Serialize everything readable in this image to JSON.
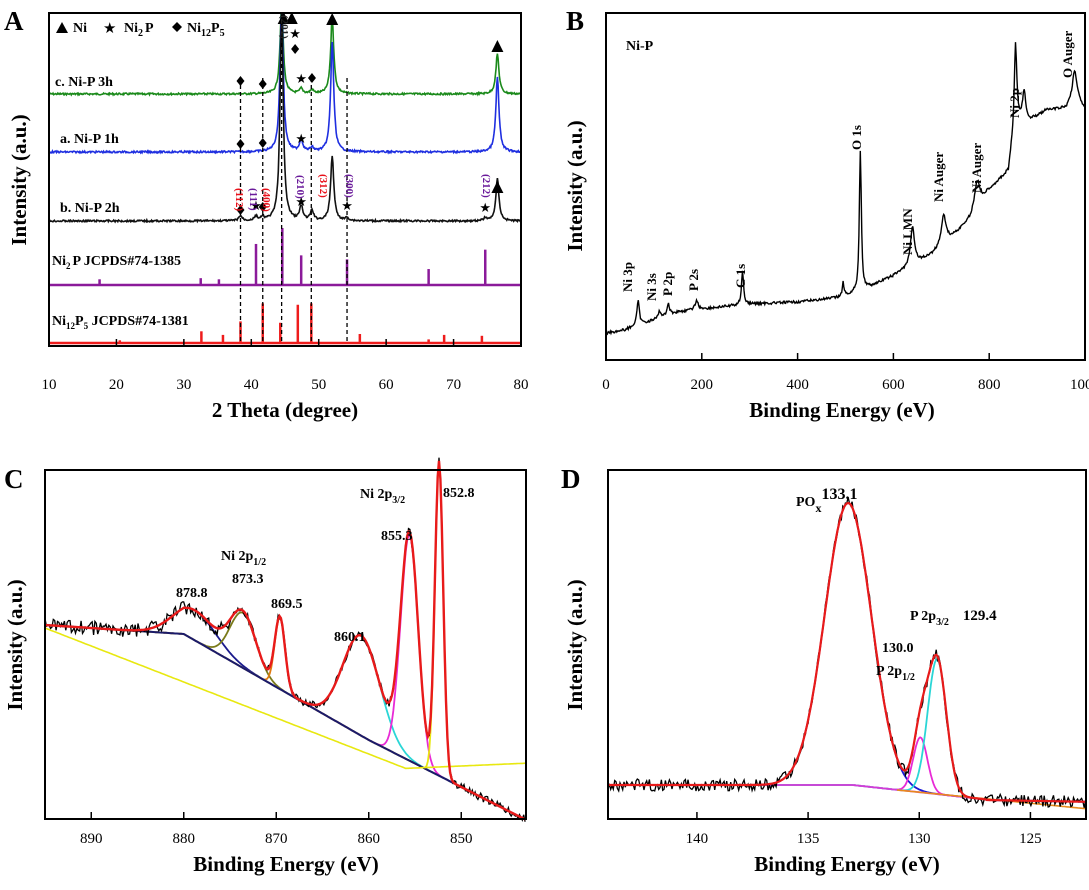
{
  "figure": {
    "panels": [
      {
        "letter": "A",
        "type": "line",
        "xlabel": "2 Theta (degree)",
        "ylabel": "Intensity (a.u.)",
        "xlim": [
          10,
          80
        ],
        "xticks": [
          "10",
          "20",
          "30",
          "40",
          "50",
          "60",
          "70",
          "80"
        ],
        "legend": {
          "ni_label": "Ni",
          "ni2p_label": "Ni",
          "ni2p_sub": "2",
          "ni2p_tail": "P",
          "ni12p5_label": "Ni",
          "ni12p5_sub1": "12",
          "ni12p5_mid": "P",
          "ni12p5_sub2": "5"
        },
        "series": [
          {
            "name": "c. Ni-P 3h",
            "color": "#1b8a1b"
          },
          {
            "name": "a. Ni-P 1h",
            "color": "#1f2fe0"
          },
          {
            "name": "b. Ni-P 2h",
            "color": "#111111"
          }
        ],
        "references": [
          {
            "label": "Ni",
            "sub": "2",
            "tail": "P JCPDS#74-1385",
            "color": "#8b1a9a",
            "peaks": [
              [
                17.5,
                0.1
              ],
              [
                32.5,
                0.12
              ],
              [
                35.2,
                0.1
              ],
              [
                40.7,
                0.72
              ],
              [
                44.6,
                1.0
              ],
              [
                47.4,
                0.52
              ],
              [
                54.2,
                0.45
              ],
              [
                66.3,
                0.28
              ],
              [
                74.7,
                0.62
              ]
            ]
          },
          {
            "label": "Ni",
            "sub": "12",
            "mid": "P",
            "sub2": "5",
            "tail": " JCPDS#74-1381",
            "color": "#ee1c1c",
            "peaks": [
              [
                20.5,
                0.06
              ],
              [
                32.6,
                0.26
              ],
              [
                35.8,
                0.18
              ],
              [
                38.4,
                0.48
              ],
              [
                41.7,
                0.88
              ],
              [
                44.3,
                0.45
              ],
              [
                46.9,
                0.85
              ],
              [
                48.9,
                0.88
              ],
              [
                56.1,
                0.2
              ],
              [
                66.3,
                0.08
              ],
              [
                68.6,
                0.18
              ],
              [
                74.2,
                0.16
              ]
            ]
          }
        ],
        "hkl_labels": [
          {
            "text": "(112)",
            "color": "#e8101a"
          },
          {
            "text": "(111)",
            "color": "#6a1a9a"
          },
          {
            "text": "(400)",
            "color": "#e8101a"
          },
          {
            "text": "(201)",
            "color": "#222222"
          },
          {
            "text": "(210)",
            "color": "#6a1a9a"
          },
          {
            "text": "(312)",
            "color": "#e8101a"
          },
          {
            "text": "(300)",
            "color": "#6a1a9a"
          },
          {
            "text": "(212)",
            "color": "#6a1a9a"
          }
        ]
      },
      {
        "letter": "B",
        "type": "line",
        "title": "Ni-P",
        "xlabel": "Binding  Energy (eV)",
        "ylabel": "Intensity (a.u.)",
        "xlim": [
          0,
          1000
        ],
        "xticks": [
          "0",
          "200",
          "400",
          "600",
          "800",
          "1000"
        ],
        "peak_labels": [
          "Ni 3p",
          "Ni 3s",
          "P 2p",
          "P 2s",
          "C 1s",
          "O 1s",
          "Ni LMN",
          "Ni Auger",
          "Ni Auger",
          "Ni 2p",
          "O Auger"
        ]
      },
      {
        "letter": "C",
        "type": "line",
        "xlabel": "Binding Energy (eV)",
        "ylabel": "Intensity (a.u.)",
        "xlim": [
          895,
          843
        ],
        "xticks": [
          "890",
          "880",
          "870",
          "860",
          "850"
        ],
        "peak_values": [
          "878.8",
          "873.3",
          "869.5",
          "860.1",
          "855.3",
          "852.8"
        ],
        "annot_2p12": {
          "main": "Ni  2p",
          "sub": "1/2"
        },
        "annot_2p32": {
          "main": "Ni  2p",
          "sub": "3/2"
        }
      },
      {
        "letter": "D",
        "type": "line",
        "xlabel": "Binding Energy (eV)",
        "ylabel": "Intensity (a.u.)",
        "xlim": [
          144,
          122.5
        ],
        "xticks": [
          "140",
          "135",
          "130",
          "125"
        ],
        "pox": {
          "main": "PO",
          "sub": "x",
          "value": "133.1"
        },
        "p2p32": {
          "main": "P 2p",
          "sub": "3/2",
          "value": "129.4"
        },
        "p2p12": {
          "main": "P 2p",
          "sub": "1/2",
          "value": "130.0"
        }
      }
    ]
  },
  "chart_data": [
    {
      "type": "line",
      "panel": "A",
      "title": "",
      "xlabel": "2 Theta (degree)",
      "ylabel": "Intensity (a.u.)",
      "xlim": [
        10,
        80
      ],
      "series": [
        {
          "name": "c. Ni-P 3h",
          "peaks_2theta": [
            44.5,
            47.4,
            49.0,
            52.0,
            76.5
          ]
        },
        {
          "name": "a. Ni-P 1h",
          "peaks_2theta": [
            44.5,
            47.4,
            52.0,
            76.5
          ]
        },
        {
          "name": "b. Ni-P 2h",
          "peaks_2theta": [
            38.4,
            40.7,
            41.7,
            44.5,
            47.4,
            49.0,
            52.0,
            54.2,
            74.7,
            76.5
          ]
        }
      ]
    },
    {
      "type": "line",
      "panel": "B",
      "title": "Ni-P",
      "xlabel": "Binding  Energy (eV)",
      "ylabel": "Intensity (a.u.)",
      "xlim": [
        0,
        1000
      ],
      "peaks_eV": [
        67,
        112,
        130,
        189,
        285,
        531,
        640,
        705,
        775,
        855,
        978
      ]
    },
    {
      "type": "line",
      "panel": "C",
      "xlabel": "Binding Energy (eV)",
      "ylabel": "Intensity (a.u.)",
      "xlim": [
        895,
        843
      ],
      "fitted_peaks_eV": [
        878.8,
        873.3,
        869.5,
        860.1,
        855.3,
        852.8
      ]
    },
    {
      "type": "line",
      "panel": "D",
      "xlabel": "Binding Energy (eV)",
      "ylabel": "Intensity (a.u.)",
      "xlim": [
        144,
        122.5
      ],
      "fitted_peaks_eV": [
        133.1,
        130.0,
        129.4
      ]
    }
  ]
}
